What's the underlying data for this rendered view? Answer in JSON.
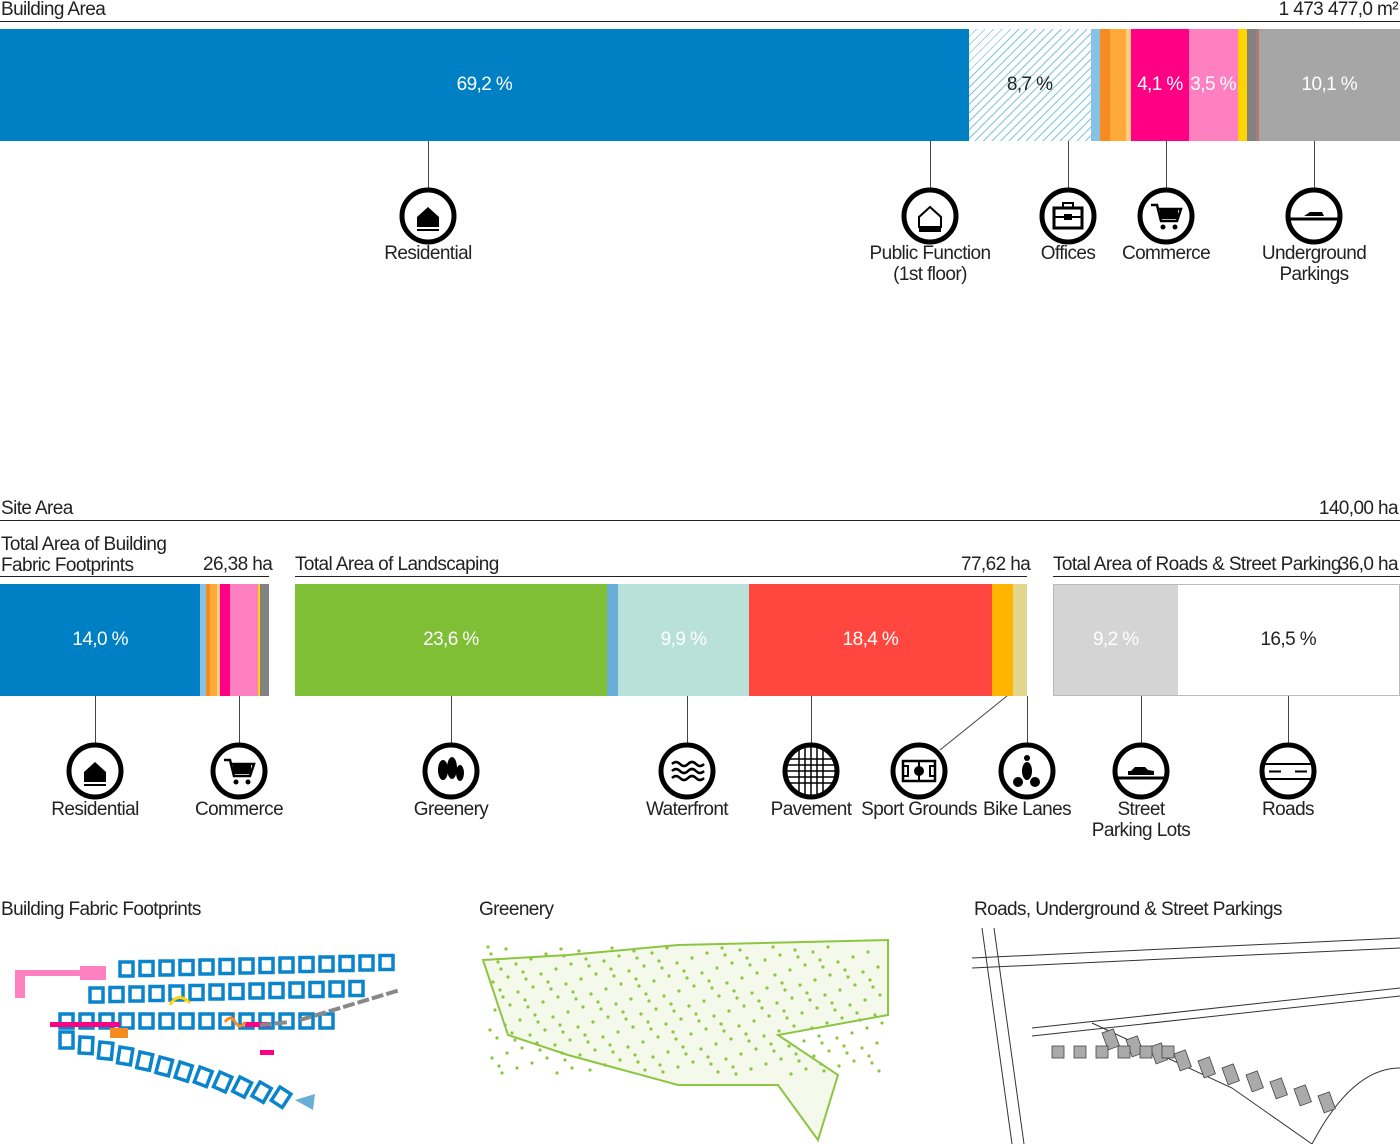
{
  "building": {
    "title": "Building Area",
    "total": "1 473 477,0 m²",
    "icons": [
      {
        "icon": "residential-icon",
        "label": "Residential"
      },
      {
        "icon": "public-function-icon",
        "label": "Public Function\n(1st floor)"
      },
      {
        "icon": "offices-icon",
        "label": "Offices"
      },
      {
        "icon": "commerce-icon",
        "label": "Commerce"
      },
      {
        "icon": "underground-parking-icon",
        "label": "Underground\nParkings"
      }
    ]
  },
  "site": {
    "title": "Site Area",
    "total": "140,00 ha",
    "footprints": {
      "title": "Total Area of Building\nFabric Footprints",
      "total": "26,38 ha"
    },
    "landscaping": {
      "title": "Total Area of Landscaping",
      "total": "77,62 ha"
    },
    "roads": {
      "title": "Total Area of Roads & Street Parking",
      "total": "36,0 ha"
    },
    "icons": [
      {
        "icon": "residential-icon",
        "label": "Residential"
      },
      {
        "icon": "commerce-icon",
        "label": "Commerce"
      },
      {
        "icon": "greenery-icon",
        "label": "Greenery"
      },
      {
        "icon": "waterfront-icon",
        "label": "Waterfront"
      },
      {
        "icon": "pavement-icon",
        "label": "Pavement"
      },
      {
        "icon": "sport-grounds-icon",
        "label": "Sport Grounds"
      },
      {
        "icon": "bike-lanes-icon",
        "label": "Bike Lanes"
      },
      {
        "icon": "street-parking-icon",
        "label": "Street\nParking Lots"
      },
      {
        "icon": "roads-icon",
        "label": "Roads"
      }
    ]
  },
  "maps": {
    "footprints": "Building Fabric Footprints",
    "greenery": "Greenery",
    "roads": "Roads, Underground & Street Parkings"
  },
  "chart_data": [
    {
      "type": "bar",
      "stacked": true,
      "orientation": "horizontal",
      "title": "Building Area",
      "unit": "%",
      "segments": [
        {
          "value": 69.2,
          "label": "69,2 %",
          "color": "#0080c4"
        },
        {
          "value": 8.7,
          "label": "8,7 %",
          "color": "hatch"
        },
        {
          "value": 0.7,
          "color": "#85c2e6"
        },
        {
          "value": 0.7,
          "color": "#f68b1f"
        },
        {
          "value": 1.1,
          "color": "#ffa93a"
        },
        {
          "value": 0.4,
          "color": "#ffcd82"
        },
        {
          "value": 4.1,
          "label": "4,1 %",
          "color": "#ff0085"
        },
        {
          "value": 3.5,
          "label": "3,5 %",
          "color": "#ff80c0"
        },
        {
          "value": 0.7,
          "color": "#ffd400"
        },
        {
          "value": 0.6,
          "color": "#828282"
        },
        {
          "value": 0.2,
          "color": "#b07878"
        },
        {
          "value": 10.1,
          "label": "10,1 %",
          "color": "#a6a6a6"
        }
      ]
    },
    {
      "type": "bar",
      "stacked": true,
      "orientation": "horizontal",
      "title": "Total Area of Building Fabric Footprints",
      "unit": "%",
      "segments": [
        {
          "value": 14.0,
          "label": "14,0 %",
          "color": "#0080c4"
        },
        {
          "value": 0.4,
          "color": "#85c2e6"
        },
        {
          "value": 0.25,
          "color": "#f68b1f"
        },
        {
          "value": 0.5,
          "color": "#ffa93a"
        },
        {
          "value": 0.25,
          "color": "#ffcd82"
        },
        {
          "value": 0.65,
          "color": "#ff0085"
        },
        {
          "value": 2.0,
          "color": "#ff80c0"
        },
        {
          "value": 0.1,
          "color": "#ffd400"
        },
        {
          "value": 0.65,
          "color": "#828282"
        }
      ]
    },
    {
      "type": "bar",
      "stacked": true,
      "orientation": "horizontal",
      "title": "Total Area of Landscaping",
      "unit": "%",
      "segments": [
        {
          "value": 23.6,
          "label": "23,6 %",
          "color": "#7fbf35"
        },
        {
          "value": 0.85,
          "color": "#6aaed8"
        },
        {
          "value": 9.9,
          "label": "9,9 %",
          "color": "#b7e1d9"
        },
        {
          "value": 18.4,
          "label": "18,4 %",
          "color": "#ff463f"
        },
        {
          "value": 1.6,
          "color": "#ffb400"
        },
        {
          "value": 1.05,
          "color": "#e2d68e"
        }
      ]
    },
    {
      "type": "bar",
      "stacked": true,
      "orientation": "horizontal",
      "title": "Total Area of Roads & Street Parking",
      "unit": "%",
      "segments": [
        {
          "value": 9.2,
          "label": "9,2 %",
          "color": "#d4d4d4"
        },
        {
          "value": 16.5,
          "label": "16,5 %",
          "color": "#ffffff"
        }
      ]
    }
  ]
}
